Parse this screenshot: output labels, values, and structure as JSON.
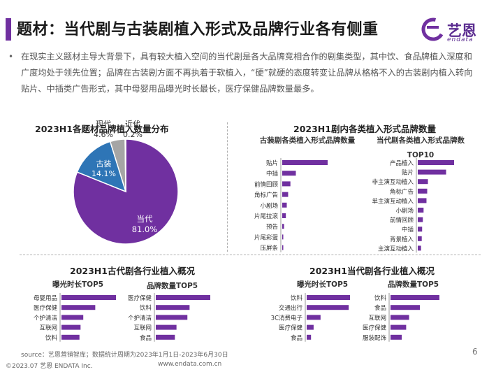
{
  "header": {
    "title": "题材：当代剧与古装剧植入形式及品牌行业各有侧重",
    "logo_text": "艺恩",
    "logo_sub": "endata"
  },
  "intro": {
    "bullet": "•",
    "text": "在现实主义题材主导大背景下，具有较大植入空间的当代剧是各大品牌竞相合作的剧集类型，其中饮、食品牌植入深度和广度均处于领先位置；品牌在古装剧方面不再执着于软植入，“硬”就硬的态度转变让品牌从格格不入的古装剧内植入转向贴片、中插类广告形式，其中母婴用品曝光时长最长，医疗保健品牌数量最多。"
  },
  "footer": {
    "source": "source：艺恩营销智库；数据统计周期为2023年1月1日-2023年6月30日",
    "copyright": "©2023.07 艺恩 ENDATA Inc.",
    "website": "www.endata.com.cn",
    "page": "6"
  },
  "colors": {
    "accent": "#7030a0",
    "blue": "#2e75b6",
    "gray": "#a5a5a5"
  },
  "chart_data": [
    {
      "type": "pie",
      "title": "2023H1各题材品牌植入数量分布",
      "labels": [
        "当代",
        "古装",
        "现代",
        "近代"
      ],
      "values": [
        81.0,
        14.1,
        4.6,
        0.2
      ],
      "value_labels": [
        "81.0%",
        "14.1%",
        "4.6%",
        "0.2%"
      ],
      "colors": [
        "#7030a0",
        "#2e75b6",
        "#a5a5a5",
        "#d9d9d9"
      ]
    },
    {
      "type": "bar",
      "title": "2023H1剧内各类植入形式品牌数量",
      "subtitle": "古装剧各类植入形式品牌数量",
      "categories": [
        "贴片",
        "中插",
        "前情回顾",
        "角标广告",
        "小剧场",
        "片尾拉滚",
        "预告",
        "片尾彩蛋",
        "压屏条"
      ],
      "values": [
        100,
        30,
        18,
        13,
        10,
        8,
        4,
        2,
        1.5
      ]
    },
    {
      "type": "bar",
      "title": "2023H1剧内各类植入形式品牌数量",
      "subtitle": "当代剧各类植入形式品牌数TOP10",
      "categories": [
        "产品植入",
        "贴片",
        "非主演互动植入",
        "角标广告",
        "单主演互动植入",
        "小剧场",
        "前情回顾",
        "中插",
        "背景植入",
        "主演互动植入"
      ],
      "values": [
        100,
        78,
        28,
        26,
        24,
        16,
        14,
        12,
        11,
        9
      ]
    },
    {
      "type": "bar",
      "title": "2023H1古代剧各行业植入概况",
      "subtitle": "曝光时长TOP5",
      "categories": [
        "母婴用品",
        "医疗保健",
        "个护清洁",
        "互联网",
        "饮料"
      ],
      "values": [
        100,
        62,
        40,
        35,
        33
      ]
    },
    {
      "type": "bar",
      "title": "2023H1古代剧各行业植入概况",
      "subtitle": "品牌数量TOP5",
      "categories": [
        "医疗保健",
        "饮料",
        "个护清洁",
        "互联网",
        "食品"
      ],
      "values": [
        100,
        62,
        58,
        38,
        35
      ]
    },
    {
      "type": "bar",
      "title": "2023H1当代剧各行业植入概况",
      "subtitle": "曝光时长TOP5",
      "categories": [
        "饮料",
        "交通出行",
        "3C消费电子",
        "医疗保健",
        "食品"
      ],
      "values": [
        100,
        97,
        32,
        16,
        10
      ]
    },
    {
      "type": "bar",
      "title": "2023H1当代剧各行业植入概况",
      "subtitle": "品牌数量TOP5",
      "categories": [
        "饮料",
        "食品",
        "互联网",
        "医疗保健",
        "服装配饰"
      ],
      "values": [
        100,
        60,
        38,
        32,
        23
      ]
    }
  ]
}
